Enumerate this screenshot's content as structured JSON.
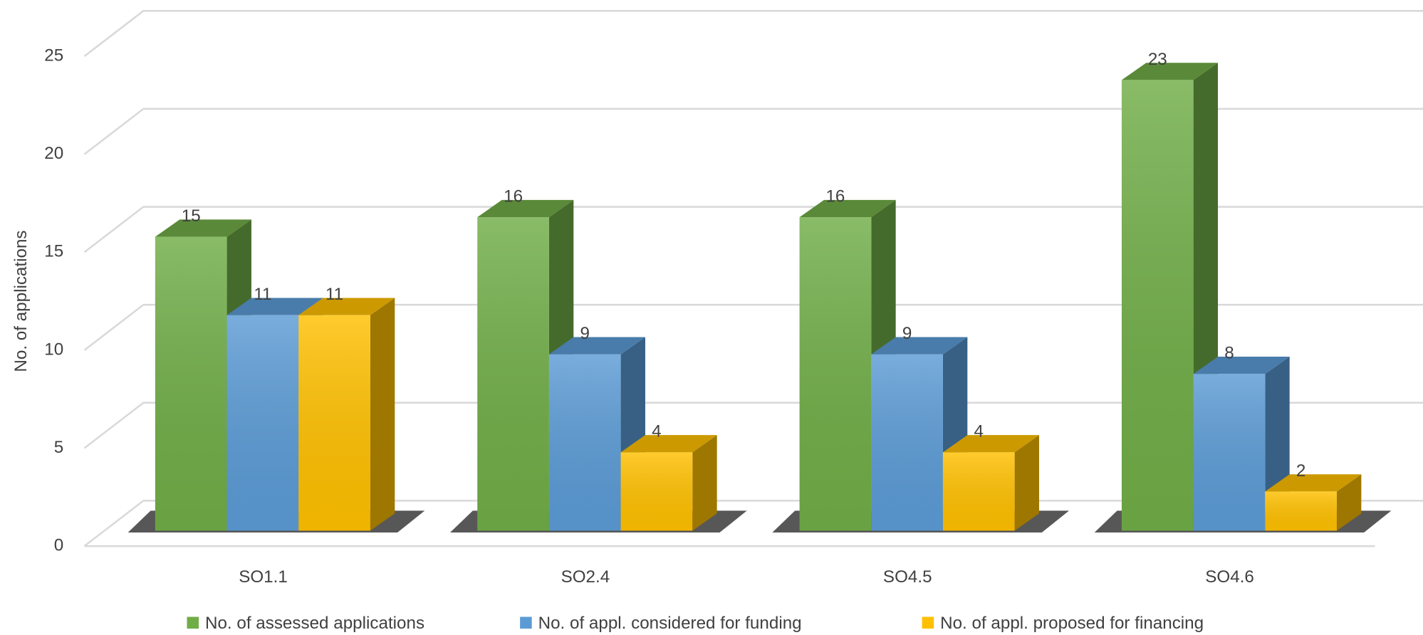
{
  "chart_data": {
    "type": "bar3d",
    "y_label": "No. of applications",
    "categories": [
      "SO1.1",
      "SO2.4",
      "SO4.5",
      "SO4.6"
    ],
    "series": [
      {
        "name": "No. of assessed applications",
        "color": "#70ad47",
        "values": [
          15,
          16,
          16,
          23
        ]
      },
      {
        "name": "No. of  appl. considered for funding",
        "color": "#5b9bd5",
        "values": [
          11,
          9,
          9,
          8
        ]
      },
      {
        "name": "No. of appl. proposed for financing",
        "color": "#ffc000",
        "values": [
          11,
          4,
          4,
          2
        ]
      }
    ],
    "ylim": [
      0,
      25
    ],
    "yticks": [
      0,
      5,
      10,
      15,
      20,
      25
    ],
    "grid": true,
    "legend": "bottom"
  }
}
